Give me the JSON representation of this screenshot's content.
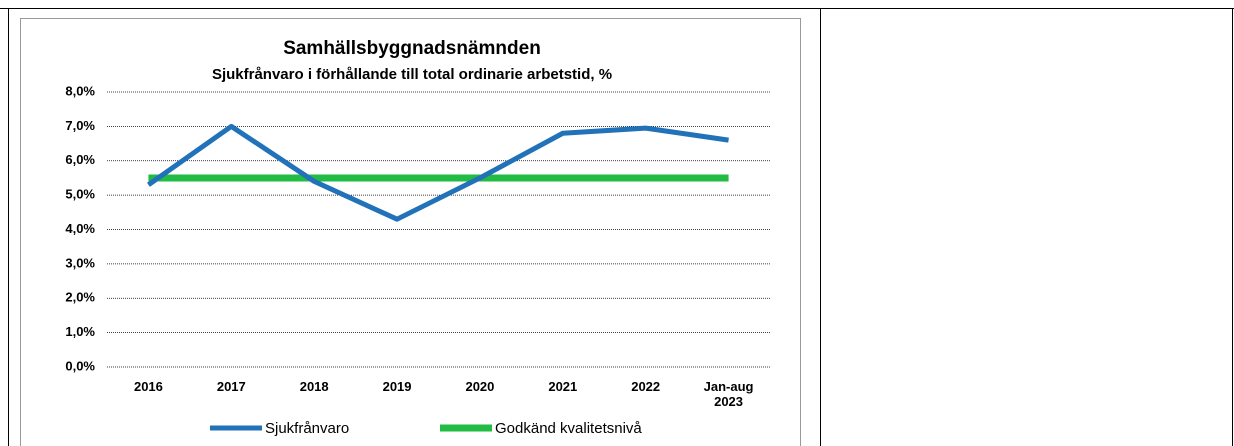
{
  "chart_data": {
    "type": "line",
    "title": "Samhällsbyggnadsnämnden",
    "subtitle": "Sjukfrånvaro  i förhållande till total ordinarie arbetstid, %",
    "categories": [
      "2016",
      "2017",
      "2018",
      "2019",
      "2020",
      "2021",
      "2022",
      "Jan-aug 2023"
    ],
    "series": [
      {
        "name": "Sjukfrånvaro",
        "color": "#2272b9",
        "values": [
          5.3,
          7.0,
          5.4,
          4.3,
          5.5,
          6.8,
          6.95,
          6.6
        ]
      },
      {
        "name": "Godkänd kvalitetsnivå",
        "color": "#22bb44",
        "values": [
          5.5,
          5.5,
          5.5,
          5.5,
          5.5,
          5.5,
          5.5,
          5.5
        ]
      }
    ],
    "ylim": [
      0,
      8
    ],
    "yticks": [
      {
        "value": 0,
        "label": "0,0%"
      },
      {
        "value": 1,
        "label": "1,0%"
      },
      {
        "value": 2,
        "label": "2,0%"
      },
      {
        "value": 3,
        "label": "3,0%"
      },
      {
        "value": 4,
        "label": "4,0%"
      },
      {
        "value": 5,
        "label": "5,0%"
      },
      {
        "value": 6,
        "label": "6,0%"
      },
      {
        "value": 7,
        "label": "7,0%"
      },
      {
        "value": 8,
        "label": "8,0%"
      }
    ],
    "grid": true,
    "legend": "bottom"
  }
}
